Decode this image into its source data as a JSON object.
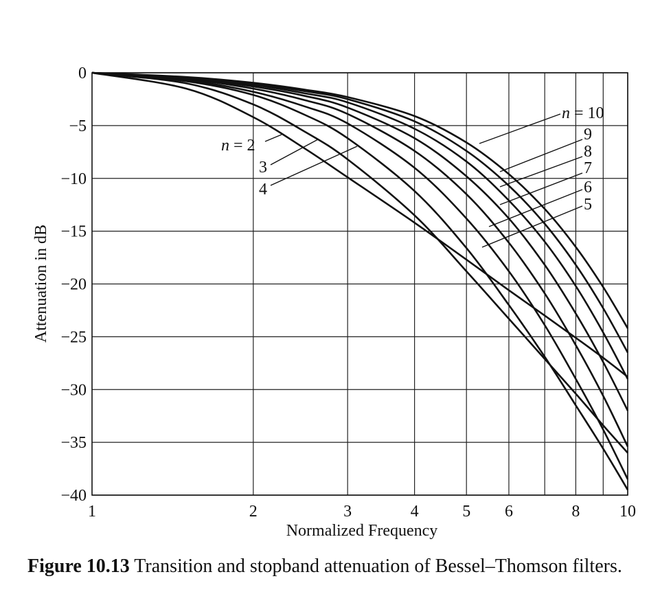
{
  "chart_data": {
    "type": "line",
    "title": "",
    "xlabel": "Normalized Frequency",
    "ylabel": "Attenuation in dB",
    "x_scale": "log",
    "xlim": [
      1,
      10
    ],
    "ylim": [
      -40,
      0
    ],
    "grid": true,
    "x_ticks": [
      1,
      2,
      3,
      4,
      5,
      6,
      8,
      10
    ],
    "x_tick_labels": [
      "1",
      "2",
      "3",
      "4",
      "5",
      "6",
      "8",
      "10"
    ],
    "x_gridlines": [
      2,
      3,
      4,
      5,
      6,
      7,
      8,
      9,
      10
    ],
    "y_ticks": [
      0,
      -5,
      -10,
      -15,
      -20,
      -25,
      -30,
      -35,
      -40
    ],
    "y_tick_labels": [
      "0",
      "−5",
      "−10",
      "−15",
      "−20",
      "−25",
      "−30",
      "−35",
      "−40"
    ],
    "series": [
      {
        "name": "n = 2",
        "x": [
          1,
          1.5,
          2,
          2.5,
          3,
          4,
          5,
          6,
          7,
          8,
          9,
          10
        ],
        "y": [
          0,
          -1.5,
          -4.2,
          -7.2,
          -9.9,
          -14.2,
          -17.7,
          -20.6,
          -23.0,
          -25.1,
          -27.0,
          -28.8
        ]
      },
      {
        "name": "3",
        "x": [
          1,
          1.5,
          2,
          2.5,
          3,
          4,
          5,
          6,
          7,
          8,
          9,
          10
        ],
        "y": [
          0,
          -1.0,
          -3.0,
          -5.6,
          -8.2,
          -13.5,
          -18.8,
          -23.3,
          -27.1,
          -30.4,
          -33.4,
          -36.0
        ]
      },
      {
        "name": "4",
        "x": [
          1,
          1.5,
          2,
          2.5,
          3,
          4,
          5,
          6,
          7,
          8,
          9,
          10
        ],
        "y": [
          0,
          -0.8,
          -2.1,
          -4.0,
          -6.2,
          -11.2,
          -16.6,
          -22.0,
          -26.9,
          -31.5,
          -35.6,
          -39.5
        ]
      },
      {
        "name": "5",
        "x": [
          1,
          1.5,
          2,
          2.5,
          3,
          4,
          5,
          6,
          7,
          8,
          9,
          10
        ],
        "y": [
          0,
          -0.7,
          -1.8,
          -3.2,
          -4.8,
          -9.0,
          -13.8,
          -18.8,
          -23.9,
          -29.0,
          -33.8,
          -38.5
        ]
      },
      {
        "name": "6",
        "x": [
          1,
          1.5,
          2,
          2.5,
          3,
          4,
          5,
          6,
          7,
          8,
          9,
          10
        ],
        "y": [
          0,
          -0.6,
          -1.5,
          -2.6,
          -3.9,
          -7.4,
          -11.5,
          -16.1,
          -20.9,
          -25.8,
          -30.6,
          -35.4
        ]
      },
      {
        "name": "7",
        "x": [
          1,
          1.5,
          2,
          2.5,
          3,
          4,
          5,
          6,
          7,
          8,
          9,
          10
        ],
        "y": [
          0,
          -0.55,
          -1.3,
          -2.2,
          -3.3,
          -6.2,
          -9.8,
          -13.8,
          -18.2,
          -22.8,
          -27.4,
          -32.0
        ]
      },
      {
        "name": "8",
        "x": [
          1,
          1.5,
          2,
          2.5,
          3,
          4,
          5,
          6,
          7,
          8,
          9,
          10
        ],
        "y": [
          0,
          -0.5,
          -1.15,
          -1.95,
          -2.8,
          -5.3,
          -8.4,
          -12.1,
          -16.0,
          -20.2,
          -24.6,
          -29.0
        ]
      },
      {
        "name": "9",
        "x": [
          1,
          1.5,
          2,
          2.5,
          3,
          4,
          5,
          6,
          7,
          8,
          9,
          10
        ],
        "y": [
          0,
          -0.45,
          -1.05,
          -1.75,
          -2.5,
          -4.6,
          -7.4,
          -10.7,
          -14.3,
          -18.2,
          -22.3,
          -26.5
        ]
      },
      {
        "name": "n = 10",
        "x": [
          1,
          1.5,
          2,
          2.5,
          3,
          4,
          5,
          6,
          7,
          8,
          9,
          10
        ],
        "y": [
          0,
          -0.4,
          -0.95,
          -1.6,
          -2.3,
          -4.1,
          -6.6,
          -9.6,
          -12.9,
          -16.5,
          -20.3,
          -24.2
        ]
      }
    ],
    "annotations": [
      {
        "text": "n = 2"
      },
      {
        "text": "3"
      },
      {
        "text": "4"
      },
      {
        "text": "n = 10"
      },
      {
        "text": "9"
      },
      {
        "text": "8"
      },
      {
        "text": "7"
      },
      {
        "text": "6"
      },
      {
        "text": "5"
      }
    ]
  },
  "caption": {
    "label": "Figure 10.13",
    "text": " Transition and stopband attenuation of Bessel–Thomson filters."
  },
  "colors": {
    "ink": "#111111",
    "grid": "#222222",
    "background": "#ffffff"
  }
}
